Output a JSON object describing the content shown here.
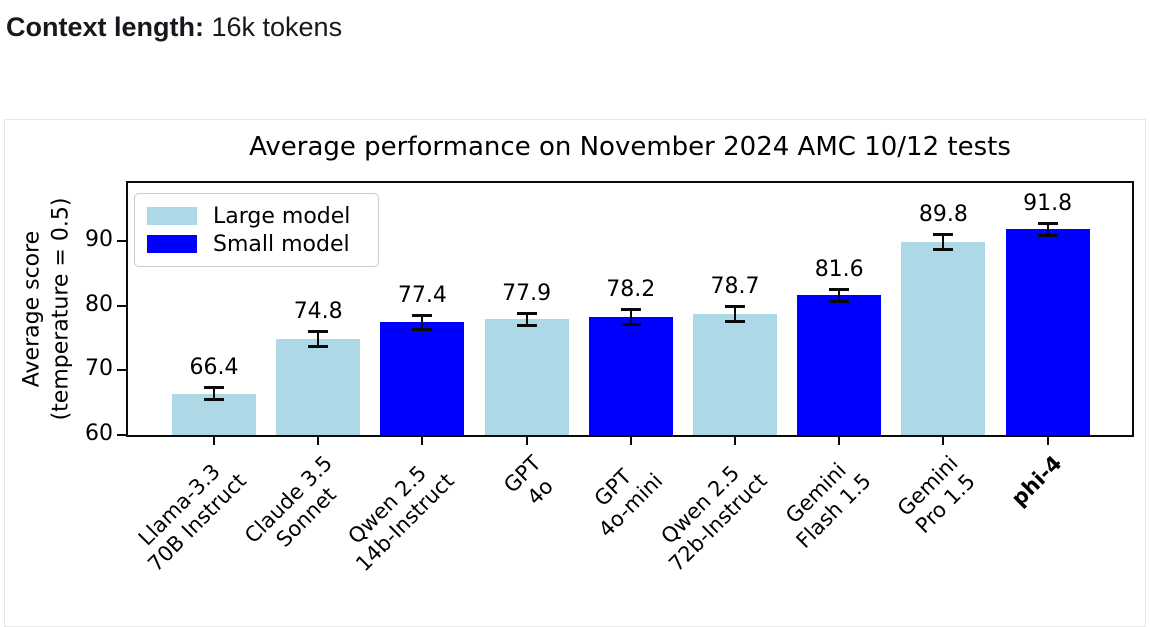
{
  "header": {
    "label": "Context length:",
    "value": " 16k tokens"
  },
  "chart_data": {
    "type": "bar",
    "title": "Average performance on November 2024 AMC 10/12 tests",
    "ylabel": "Average score\n(temperature = 0.5)",
    "xlabel": "",
    "yticks": [
      60,
      70,
      80,
      90
    ],
    "ylim": [
      60,
      99.4
    ],
    "grid": false,
    "legend_position": "upper left",
    "legend": [
      {
        "label": "Large model",
        "color": "#ADD8E6"
      },
      {
        "label": "Small model",
        "color": "#0000FF"
      }
    ],
    "categories": [
      {
        "label_lines": [
          "Llama-3.3",
          "70B Instruct"
        ],
        "group": "large",
        "bold": false
      },
      {
        "label_lines": [
          "Claude 3.5",
          "Sonnet"
        ],
        "group": "large",
        "bold": false
      },
      {
        "label_lines": [
          "Qwen 2.5",
          "14b-Instruct"
        ],
        "group": "small",
        "bold": false
      },
      {
        "label_lines": [
          "GPT",
          "4o"
        ],
        "group": "large",
        "bold": false
      },
      {
        "label_lines": [
          "GPT",
          "4o-mini"
        ],
        "group": "small",
        "bold": false
      },
      {
        "label_lines": [
          "Qwen 2.5",
          "72b-Instruct"
        ],
        "group": "large",
        "bold": false
      },
      {
        "label_lines": [
          "Gemini",
          "Flash 1.5"
        ],
        "group": "small",
        "bold": false
      },
      {
        "label_lines": [
          "Gemini",
          "Pro 1.5"
        ],
        "group": "large",
        "bold": false
      },
      {
        "label_lines": [
          "phi-4"
        ],
        "group": "small",
        "bold": true
      }
    ],
    "values": [
      66.4,
      74.8,
      77.4,
      77.9,
      78.2,
      78.7,
      81.6,
      89.8,
      91.8
    ],
    "errors": [
      1.0,
      1.2,
      1.2,
      1.0,
      1.2,
      1.2,
      1.0,
      1.2,
      1.0
    ],
    "colors": {
      "large": "#ADD8E6",
      "small": "#0000FF"
    }
  }
}
